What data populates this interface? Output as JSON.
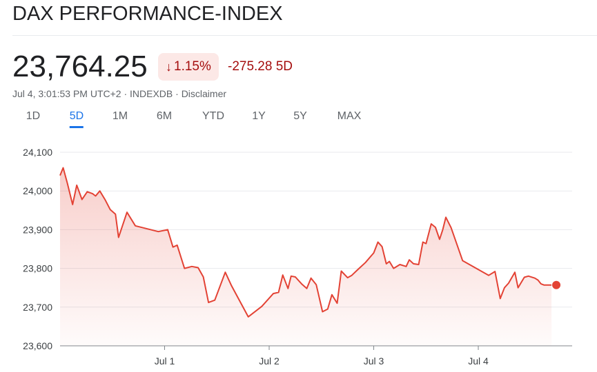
{
  "header": {
    "title": "DAX PERFORMANCE-INDEX",
    "price": "23,764.25",
    "change_pct": "1.15%",
    "change_arrow": "↓",
    "change_abs": "-275.28",
    "change_period": "5D",
    "meta": "Jul 4, 3:01:53 PM UTC+2 · INDEXDB · Disclaimer"
  },
  "tabs": [
    {
      "label": "1D"
    },
    {
      "label": "5D"
    },
    {
      "label": "1M"
    },
    {
      "label": "6M"
    },
    {
      "label": "YTD"
    },
    {
      "label": "1Y"
    },
    {
      "label": "5Y"
    },
    {
      "label": "MAX"
    }
  ],
  "active_tab": "5D",
  "colors": {
    "line": "#e34234",
    "negative_text": "#a50e0e",
    "badge_bg": "#fce8e6",
    "active_tab": "#1a73e8",
    "grid": "#e8eaed"
  },
  "chart_data": {
    "type": "area",
    "x_unit": "trading days (0 = start of Jun 30 session)",
    "ylim": [
      23600,
      24100
    ],
    "y_ticks": [
      24100,
      24000,
      23900,
      23800,
      23700,
      23600
    ],
    "y_tick_labels": [
      "24,100",
      "24,000",
      "23,900",
      "23,800",
      "23,700",
      "23,600"
    ],
    "x_ticks": [
      1,
      2,
      3,
      4
    ],
    "x_tick_labels": [
      "Jul 1",
      "Jul 2",
      "Jul 3",
      "Jul 4"
    ],
    "grid": true,
    "series": [
      {
        "x": [
          0.0,
          0.03,
          0.07,
          0.12,
          0.16,
          0.21,
          0.26,
          0.31,
          0.34,
          0.38,
          0.43,
          0.48,
          0.53,
          0.56,
          0.64,
          0.72,
          0.94,
          1.03,
          1.08,
          1.12,
          1.19,
          1.26,
          1.32,
          1.37,
          1.42,
          1.48,
          1.58,
          1.64,
          1.72,
          1.8,
          1.93,
          2.04,
          2.09,
          2.13,
          2.18,
          2.21,
          2.25,
          2.31,
          2.36,
          2.4,
          2.45,
          2.51,
          2.56,
          2.6,
          2.65,
          2.69,
          2.75,
          2.79,
          2.84,
          2.92,
          3.0,
          3.04,
          3.08,
          3.12,
          3.15,
          3.19,
          3.25,
          3.31,
          3.34,
          3.38,
          3.43,
          3.47,
          3.5,
          3.55,
          3.59,
          3.63,
          3.66,
          3.69,
          3.74,
          3.85,
          4.1,
          4.16,
          4.21,
          4.25,
          4.29,
          4.35,
          4.38,
          4.44,
          4.48,
          4.54,
          4.57,
          4.6,
          4.63,
          4.67,
          4.7
        ],
        "y": [
          24040,
          24060,
          24020,
          23965,
          24015,
          23978,
          23998,
          23993,
          23987,
          24000,
          23978,
          23952,
          23940,
          23880,
          23945,
          23910,
          23895,
          23900,
          23855,
          23860,
          23800,
          23805,
          23802,
          23778,
          23712,
          23718,
          23790,
          23755,
          23715,
          23675,
          23702,
          23735,
          23738,
          23783,
          23748,
          23780,
          23778,
          23760,
          23748,
          23775,
          23758,
          23688,
          23695,
          23732,
          23710,
          23793,
          23776,
          23782,
          23795,
          23815,
          23840,
          23868,
          23856,
          23812,
          23818,
          23800,
          23810,
          23805,
          23822,
          23812,
          23810,
          23868,
          23864,
          23915,
          23906,
          23875,
          23900,
          23932,
          23905,
          23820,
          23782,
          23792,
          23722,
          23750,
          23762,
          23790,
          23750,
          23777,
          23780,
          23775,
          23770,
          23760,
          23757,
          23757,
          23757
        ],
        "end_marker": true
      }
    ]
  }
}
